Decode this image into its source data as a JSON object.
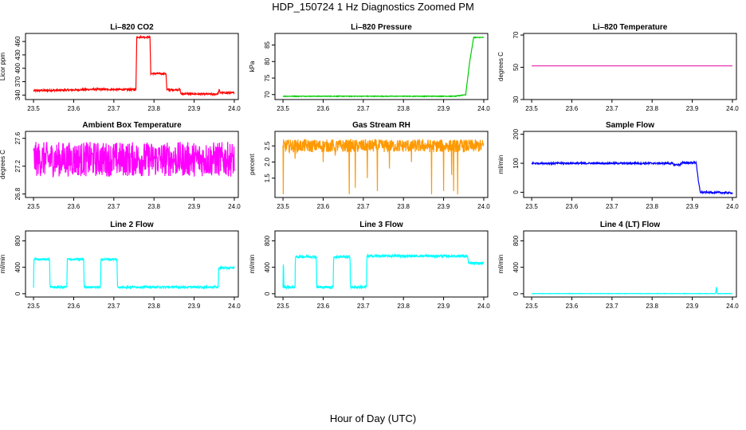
{
  "title": "HDP_150724  1 Hz Diagnostics Zoomed PM",
  "xlabel": "Hour of Day (UTC)",
  "chart_data": [
    {
      "type": "line",
      "title": "Li–820 CO2",
      "ylabel": "Licor ppm",
      "color": "#ff0000",
      "xlim": [
        23.48,
        24.01
      ],
      "ylim": [
        330,
        478
      ],
      "x_ticks": [
        "23.5",
        "23.6",
        "23.7",
        "23.8",
        "23.9",
        "24.0"
      ],
      "y_ticks": [
        "340",
        "370",
        "400",
        "430",
        "460"
      ],
      "noise": 2,
      "series": [
        {
          "x": [
            23.5,
            23.58,
            23.65,
            23.755,
            23.757,
            23.79,
            23.792,
            23.83,
            23.832,
            23.865,
            23.867,
            23.95,
            23.96,
            23.962,
            23.965,
            24.0
          ],
          "values": [
            350,
            351,
            353,
            352,
            470,
            470,
            388,
            388,
            352,
            352,
            343,
            342,
            343,
            352,
            345,
            345
          ]
        }
      ]
    },
    {
      "type": "line",
      "title": "Li–820 Pressure",
      "ylabel": "kPa",
      "color": "#00cc00",
      "xlim": [
        23.48,
        24.01
      ],
      "ylim": [
        68.5,
        88.5
      ],
      "x_ticks": [
        "23.5",
        "23.6",
        "23.7",
        "23.8",
        "23.9",
        "24.0"
      ],
      "y_ticks": [
        "70",
        "75",
        "80",
        "85"
      ],
      "noise": 0.1,
      "series": [
        {
          "x": [
            23.5,
            23.9,
            23.93,
            23.955,
            23.965,
            23.975,
            24.0
          ],
          "values": [
            69.5,
            69.5,
            69.5,
            70.0,
            80.0,
            87.3,
            87.3
          ]
        }
      ]
    },
    {
      "type": "line",
      "title": "Li–820 Temperature",
      "ylabel": "degrees C",
      "color": "#e000a0",
      "xlim": [
        23.48,
        24.01
      ],
      "ylim": [
        30,
        71
      ],
      "x_ticks": [
        "23.5",
        "23.6",
        "23.7",
        "23.8",
        "23.9",
        "24.0"
      ],
      "y_ticks": [
        "30",
        "50",
        "70"
      ],
      "noise": 0,
      "series": [
        {
          "x": [
            23.5,
            24.0
          ],
          "values": [
            50.9,
            50.9
          ]
        }
      ]
    },
    {
      "type": "line",
      "title": "Ambient Box Temperature",
      "ylabel": "degrees C",
      "color": "#ff00ff",
      "xlim": [
        23.48,
        24.01
      ],
      "ylim": [
        26.75,
        27.7
      ],
      "x_ticks": [
        "23.5",
        "23.6",
        "23.7",
        "23.8",
        "23.9",
        "24.0"
      ],
      "y_ticks": [
        "26.8",
        "27.2",
        "27.6"
      ],
      "noise": 0.25,
      "series": [
        {
          "x": [
            23.5,
            24.0
          ],
          "values": [
            27.3,
            27.3
          ]
        }
      ]
    },
    {
      "type": "line",
      "title": "Gas Stream RH",
      "ylabel": "percent",
      "color": "#ff9900",
      "xlim": [
        23.48,
        24.01
      ],
      "ylim": [
        0.9,
        2.95
      ],
      "x_ticks": [
        "23.5",
        "23.6",
        "23.7",
        "23.8",
        "23.9",
        "24.0"
      ],
      "y_ticks": [
        "1.5",
        "2.0",
        "2.5"
      ],
      "noise": 0.2,
      "series": [
        {
          "x": [
            23.5,
            24.0
          ],
          "values": [
            2.5,
            2.5
          ]
        }
      ],
      "dips": [
        [
          23.501,
          1.0
        ],
        [
          23.53,
          2.1
        ],
        [
          23.6,
          2.0
        ],
        [
          23.63,
          2.2
        ],
        [
          23.665,
          1.0
        ],
        [
          23.68,
          1.2
        ],
        [
          23.71,
          1.5
        ],
        [
          23.735,
          1.1
        ],
        [
          23.765,
          1.8
        ],
        [
          23.82,
          2.0
        ],
        [
          23.87,
          1.0
        ],
        [
          23.9,
          1.1
        ],
        [
          23.92,
          1.6
        ],
        [
          23.925,
          1.1
        ],
        [
          23.935,
          1.0
        ]
      ]
    },
    {
      "type": "line",
      "title": "Sample Flow",
      "ylabel": "ml/min",
      "color": "#0000ff",
      "xlim": [
        23.48,
        24.01
      ],
      "ylim": [
        -18,
        210
      ],
      "x_ticks": [
        "23.5",
        "23.6",
        "23.7",
        "23.8",
        "23.9",
        "24.0"
      ],
      "y_ticks": [
        "0",
        "100",
        "200"
      ],
      "noise": 3,
      "series": [
        {
          "x": [
            23.5,
            23.85,
            23.855,
            23.87,
            23.875,
            23.91,
            23.915,
            23.92,
            24.0
          ],
          "values": [
            100,
            100,
            95,
            95,
            102,
            102,
            40,
            0,
            -2
          ]
        }
      ]
    },
    {
      "type": "line",
      "title": "Line 2 Flow",
      "ylabel": "ml/min",
      "color": "#00ffff",
      "xlim": [
        23.48,
        24.01
      ],
      "ylim": [
        -50,
        950
      ],
      "x_ticks": [
        "23.5",
        "23.6",
        "23.7",
        "23.8",
        "23.9",
        "24.0"
      ],
      "y_ticks": [
        "0",
        "400",
        "800"
      ],
      "noise": 15,
      "series": [
        {
          "x": [
            23.5,
            23.501,
            23.54,
            23.541,
            23.583,
            23.584,
            23.625,
            23.626,
            23.667,
            23.668,
            23.708,
            23.709,
            23.96,
            23.961,
            24.0
          ],
          "values": [
            100,
            520,
            520,
            100,
            100,
            520,
            520,
            100,
            100,
            520,
            520,
            100,
            100,
            390,
            390
          ]
        }
      ]
    },
    {
      "type": "line",
      "title": "Line 3 Flow",
      "ylabel": "ml/min",
      "color": "#00ffff",
      "xlim": [
        23.48,
        24.01
      ],
      "ylim": [
        -50,
        950
      ],
      "x_ticks": [
        "23.5",
        "23.6",
        "23.7",
        "23.8",
        "23.9",
        "24.0"
      ],
      "y_ticks": [
        "0",
        "400",
        "800"
      ],
      "noise": 18,
      "series": [
        {
          "x": [
            23.5,
            23.501,
            23.502,
            23.53,
            23.531,
            23.583,
            23.584,
            23.625,
            23.626,
            23.667,
            23.668,
            23.708,
            23.709,
            23.95,
            23.96,
            23.962,
            24.0
          ],
          "values": [
            100,
            580,
            100,
            100,
            560,
            560,
            100,
            100,
            560,
            560,
            100,
            100,
            570,
            570,
            560,
            460,
            460
          ]
        }
      ]
    },
    {
      "type": "line",
      "title": "Line 4 (LT) Flow",
      "ylabel": "ml/min",
      "color": "#00ffff",
      "xlim": [
        23.48,
        24.01
      ],
      "ylim": [
        -50,
        950
      ],
      "x_ticks": [
        "23.5",
        "23.6",
        "23.7",
        "23.8",
        "23.9",
        "24.0"
      ],
      "y_ticks": [
        "0",
        "400",
        "800"
      ],
      "noise": 3,
      "series": [
        {
          "x": [
            23.5,
            23.958,
            23.96,
            23.962,
            23.964,
            24.0
          ],
          "values": [
            2,
            2,
            100,
            2,
            2,
            2
          ]
        }
      ]
    }
  ]
}
